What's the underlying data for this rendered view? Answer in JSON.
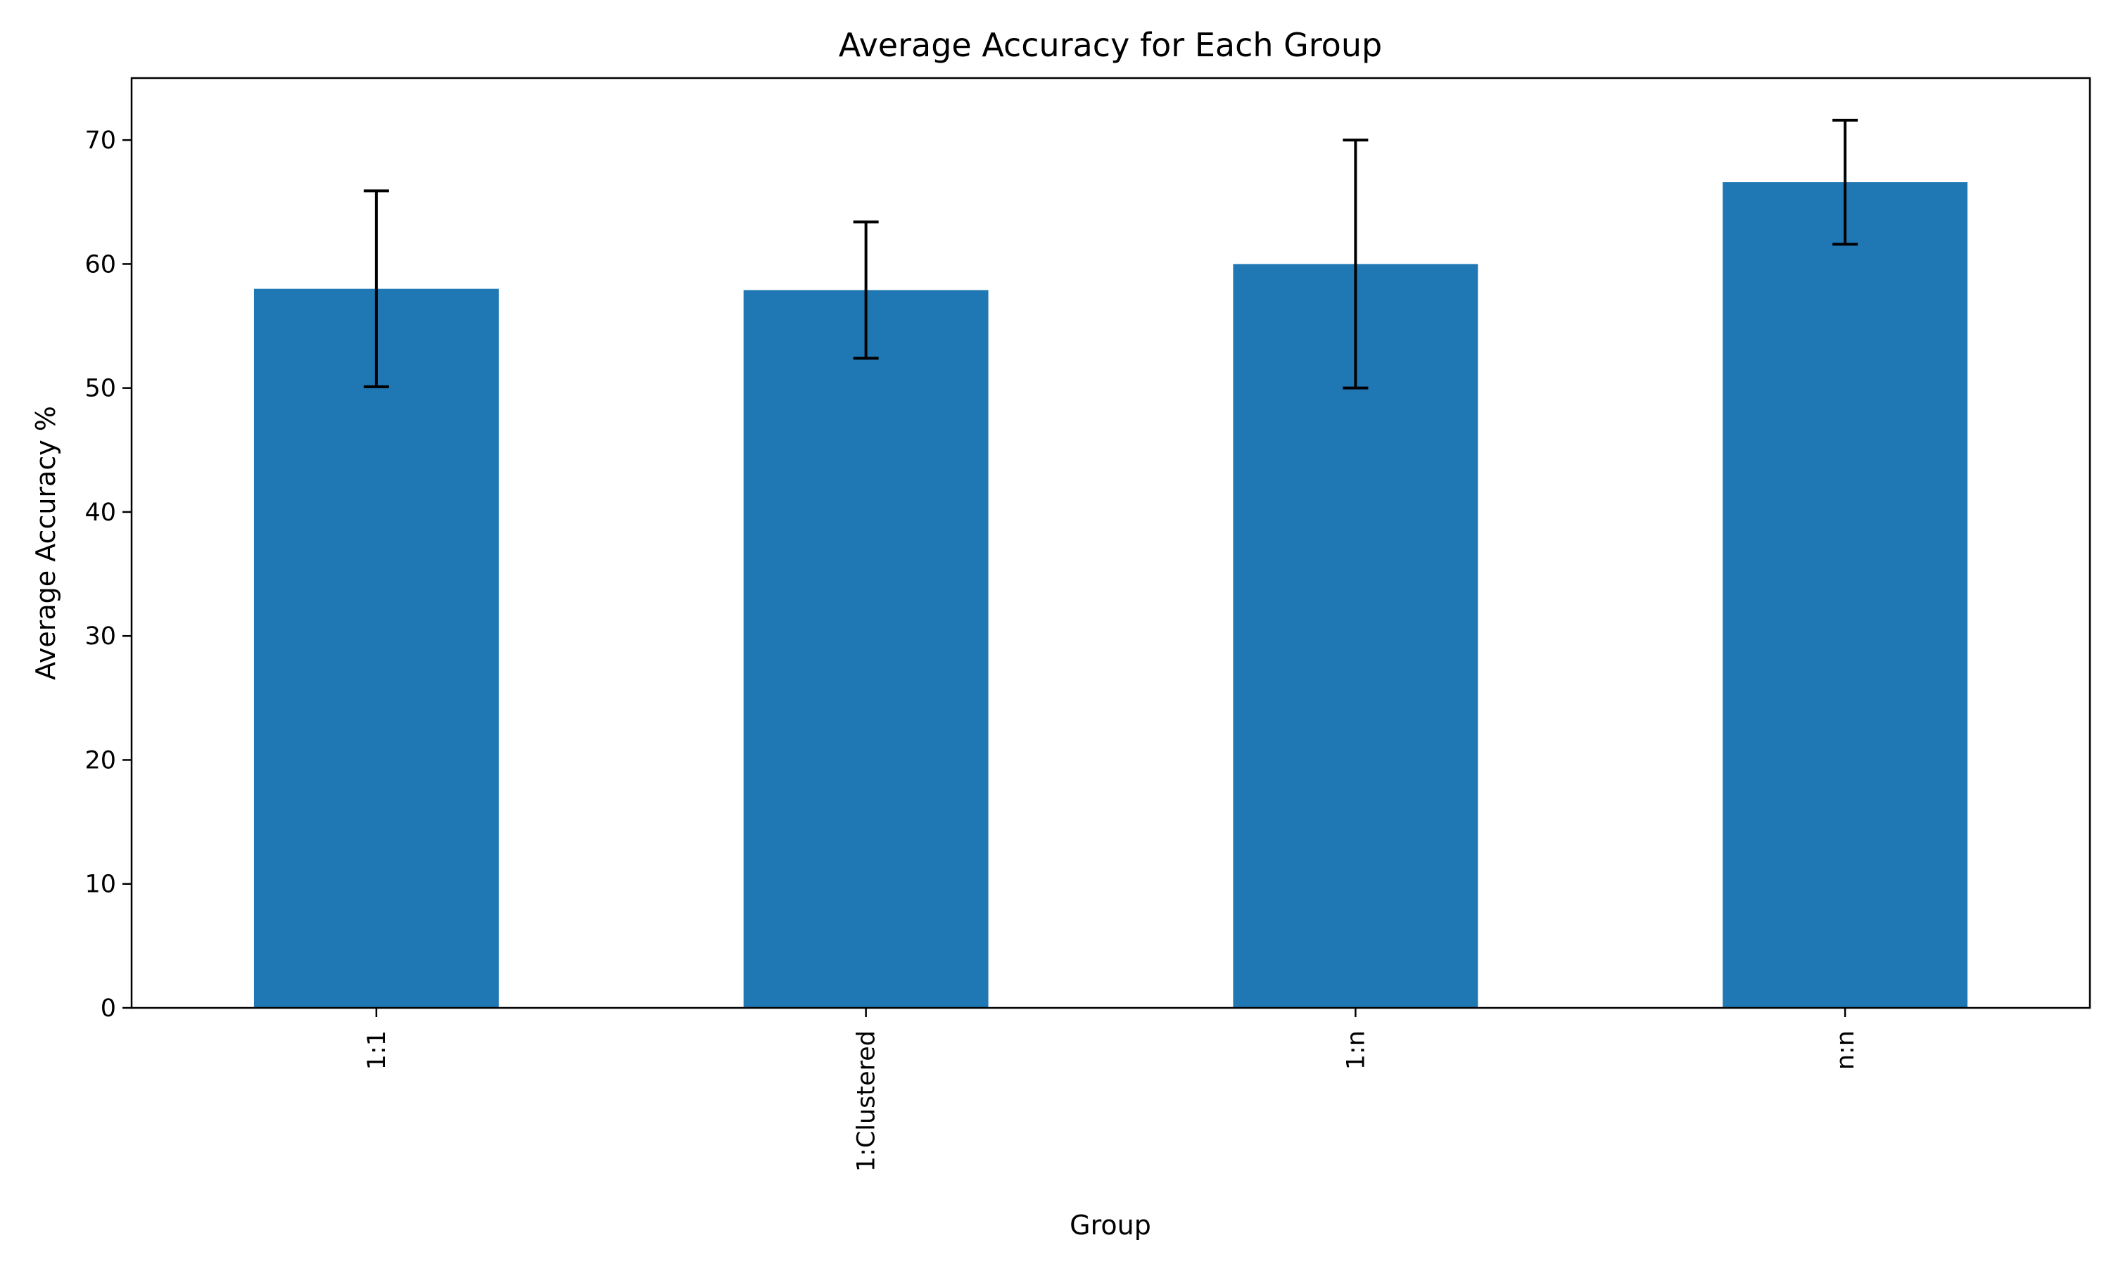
{
  "chart_data": {
    "type": "bar",
    "title": "Average Accuracy for Each Group",
    "xlabel": "Group",
    "ylabel": "Average Accuracy %",
    "categories": [
      "1:1",
      "1:Clustered",
      "1:n",
      "n:n"
    ],
    "values": [
      58.0,
      57.9,
      60.0,
      66.6
    ],
    "error": [
      7.9,
      5.5,
      10.0,
      5.0
    ],
    "ylim": [
      0,
      75
    ],
    "yticks": [
      0,
      10,
      20,
      30,
      40,
      50,
      60,
      70
    ],
    "grid": false,
    "legend": "none",
    "colors": {
      "bar": "#1f77b4",
      "errorbar": "#000000",
      "axes": "#000000"
    }
  }
}
